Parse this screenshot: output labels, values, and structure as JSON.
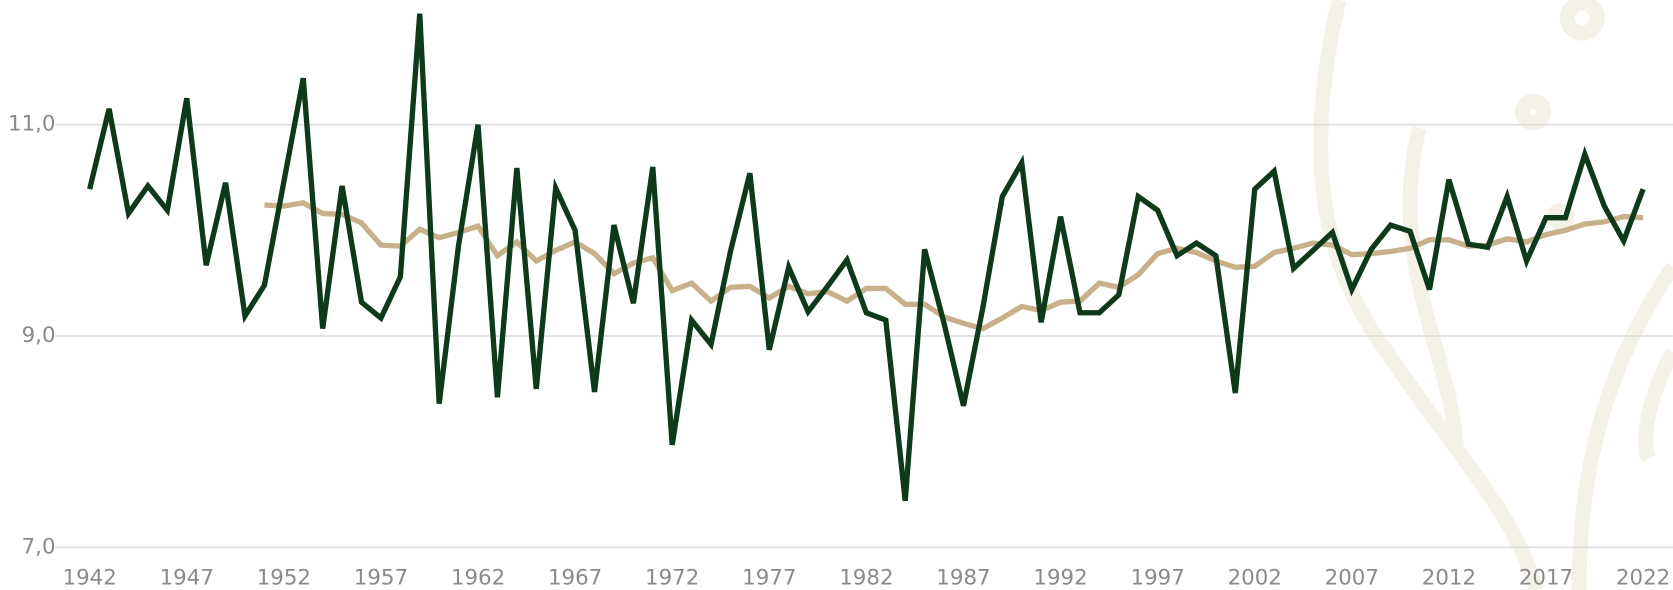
{
  "chart_data": {
    "type": "line",
    "x": [
      1942,
      1943,
      1944,
      1945,
      1946,
      1947,
      1948,
      1949,
      1950,
      1951,
      1952,
      1953,
      1954,
      1955,
      1956,
      1957,
      1958,
      1959,
      1960,
      1961,
      1962,
      1963,
      1964,
      1965,
      1966,
      1967,
      1968,
      1969,
      1970,
      1971,
      1972,
      1973,
      1974,
      1975,
      1976,
      1977,
      1978,
      1979,
      1980,
      1981,
      1982,
      1983,
      1984,
      1985,
      1986,
      1987,
      1988,
      1989,
      1990,
      1991,
      1992,
      1993,
      1994,
      1995,
      1996,
      1997,
      1998,
      1999,
      2000,
      2001,
      2002,
      2003,
      2004,
      2005,
      2006,
      2007,
      2008,
      2009,
      2010,
      2011,
      2012,
      2013,
      2014,
      2015,
      2016,
      2017,
      2018,
      2019,
      2020,
      2021,
      2022
    ],
    "series": [
      {
        "color": "#0d3a1a",
        "values": [
          10.39,
          11.15,
          10.16,
          10.42,
          10.19,
          11.25,
          9.67,
          10.45,
          9.19,
          9.48,
          10.46,
          11.44,
          9.07,
          10.42,
          9.32,
          9.17,
          9.56,
          12.05,
          8.36,
          9.86,
          11.0,
          8.42,
          10.59,
          8.5,
          10.4,
          10.0,
          8.47,
          10.05,
          9.31,
          10.6,
          7.97,
          9.15,
          8.92,
          9.8,
          10.54,
          8.87,
          9.65,
          9.23,
          9.47,
          9.72,
          9.22,
          9.15,
          7.44,
          9.82,
          9.12,
          8.34,
          9.27,
          10.32,
          10.64,
          9.13,
          10.13,
          9.22,
          9.22,
          9.39,
          10.32,
          10.19,
          9.76,
          9.88,
          9.76,
          8.46,
          10.39,
          10.56,
          9.64,
          9.81,
          9.98,
          9.44,
          9.82,
          10.05,
          9.99,
          9.44,
          10.48,
          9.87,
          9.84,
          10.32,
          9.71,
          10.12,
          10.12,
          10.72,
          10.23,
          9.9,
          10.39
        ]
      },
      {
        "color": "#c8b08a",
        "values": [
          null,
          null,
          null,
          null,
          null,
          null,
          null,
          null,
          null,
          10.24,
          10.23,
          10.26,
          10.16,
          10.15,
          10.07,
          9.86,
          9.85,
          10.01,
          9.93,
          9.98,
          10.04,
          9.76,
          9.89,
          9.71,
          9.81,
          9.89,
          9.78,
          9.59,
          9.69,
          9.74,
          9.43,
          9.5,
          9.33,
          9.46,
          9.47,
          9.36,
          9.47,
          9.4,
          9.42,
          9.33,
          9.45,
          9.45,
          9.3,
          9.3,
          9.18,
          9.12,
          9.07,
          9.17,
          9.28,
          9.24,
          9.32,
          9.33,
          9.5,
          9.46,
          9.58,
          9.78,
          9.83,
          9.79,
          9.71,
          9.65,
          9.66,
          9.79,
          9.83,
          9.88,
          9.86,
          9.77,
          9.78,
          9.8,
          9.83,
          9.91,
          9.91,
          9.85,
          9.86,
          9.92,
          9.89,
          9.96,
          10.0,
          10.06,
          10.08,
          10.13,
          10.12
        ]
      }
    ],
    "xlim": [
      1942,
      2022
    ],
    "xticks": [
      1942,
      1947,
      1952,
      1957,
      1962,
      1967,
      1972,
      1977,
      1982,
      1987,
      1992,
      1997,
      2002,
      2007,
      2012,
      2017,
      2022
    ],
    "ylim": [
      7,
      12.18
    ],
    "yticks": [
      {
        "value": 7,
        "label": "7,0"
      },
      {
        "value": 9,
        "label": "9,0"
      },
      {
        "value": 11,
        "label": "11,0"
      }
    ],
    "grid": true
  }
}
